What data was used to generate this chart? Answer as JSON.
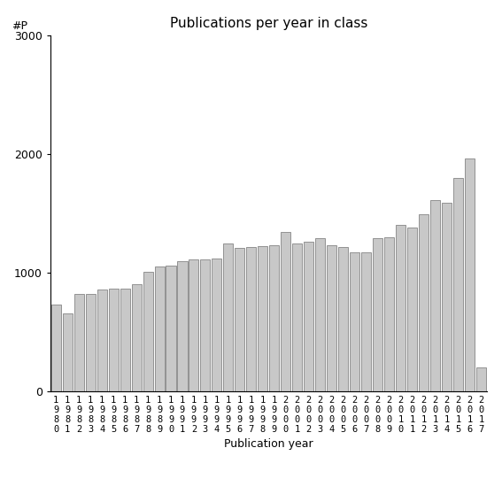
{
  "title": "Publications per year in class",
  "xlabel": "Publication year",
  "ylabel": "#P",
  "ylim": [
    0,
    3000
  ],
  "yticks": [
    0,
    1000,
    2000,
    3000
  ],
  "bar_color": "#c8c8c8",
  "bar_edgecolor": "#555555",
  "background_color": "#ffffff",
  "years": [
    1980,
    1981,
    1982,
    1983,
    1984,
    1985,
    1986,
    1987,
    1988,
    1989,
    1990,
    1991,
    1992,
    1993,
    1994,
    1995,
    1996,
    1997,
    1998,
    1999,
    2000,
    2001,
    2002,
    2003,
    2004,
    2005,
    2006,
    2007,
    2008,
    2009,
    2010,
    2011,
    2012,
    2013,
    2014,
    2015,
    2016,
    2017
  ],
  "values": [
    730,
    660,
    820,
    820,
    860,
    870,
    870,
    900,
    1010,
    1050,
    1060,
    1100,
    1110,
    1115,
    1120,
    1250,
    1210,
    1220,
    1225,
    1230,
    1340,
    1250,
    1260,
    1290,
    1230,
    1220,
    1170,
    1170,
    1290,
    1300,
    1400,
    1380,
    1490,
    1610,
    1590,
    1800,
    1960,
    200
  ],
  "title_fontsize": 11,
  "axis_label_fontsize": 9,
  "tick_fontsize": 7.5,
  "bar_linewidth": 0.4
}
